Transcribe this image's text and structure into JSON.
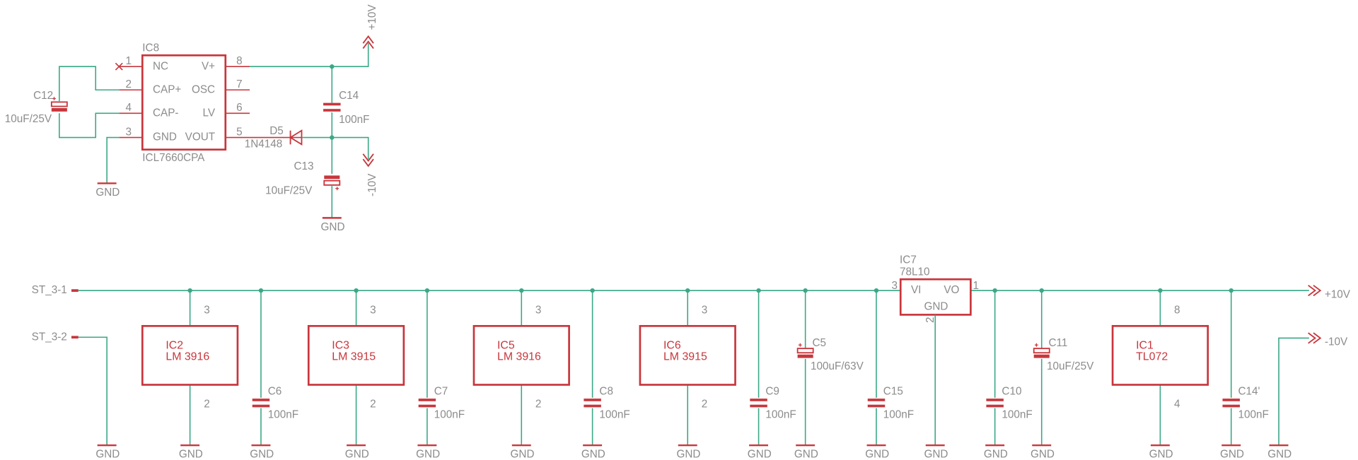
{
  "ground": "GND",
  "top": {
    "ic8": {
      "ref": "IC8",
      "value": "ICL7660CPA",
      "pins": [
        {
          "num": "1",
          "name": "NC"
        },
        {
          "num": "2",
          "name": "CAP+"
        },
        {
          "num": "4",
          "name": "CAP-"
        },
        {
          "num": "3",
          "name": "GND"
        },
        {
          "num": "8",
          "name": "V+"
        },
        {
          "num": "7",
          "name": "OSC"
        },
        {
          "num": "6",
          "name": "LV"
        },
        {
          "num": "5",
          "name": "VOUT"
        }
      ]
    },
    "caps": [
      {
        "ref": "C12",
        "value": "10uF/25V"
      },
      {
        "ref": "C14",
        "value": "100nF"
      },
      {
        "ref": "C13",
        "value": "10uF/25V"
      }
    ],
    "diode": {
      "ref": "D5",
      "value": "1N4148"
    },
    "rails": [
      "+10V",
      "-10V"
    ]
  },
  "bottom": {
    "connectors": [
      "ST_3-1",
      "ST_3-2"
    ],
    "ics": [
      {
        "ref": "IC2",
        "value": "LM 3916",
        "pin_top": "3",
        "pin_bottom": "2"
      },
      {
        "ref": "IC3",
        "value": "LM 3915",
        "pin_top": "3",
        "pin_bottom": "2"
      },
      {
        "ref": "IC5",
        "value": "LM 3916",
        "pin_top": "3",
        "pin_bottom": "2"
      },
      {
        "ref": "IC6",
        "value": "LM 3915",
        "pin_top": "3",
        "pin_bottom": "2"
      },
      {
        "ref": "IC1",
        "value": "TL072",
        "pin_top": "8",
        "pin_bottom": "4"
      }
    ],
    "caps": [
      {
        "ref": "C6",
        "value": "100nF"
      },
      {
        "ref": "C7",
        "value": "100nF"
      },
      {
        "ref": "C8",
        "value": "100nF"
      },
      {
        "ref": "C9",
        "value": "100nF"
      },
      {
        "ref": "C5",
        "value": "100uF/63V"
      },
      {
        "ref": "C15",
        "value": "100nF"
      },
      {
        "ref": "C10",
        "value": "100nF"
      },
      {
        "ref": "C11",
        "value": "10uF/25V"
      },
      {
        "ref": "C14'",
        "value": "100nF"
      }
    ],
    "regulator": {
      "ref": "IC7",
      "value": "78L10",
      "pins": [
        {
          "num": "3",
          "name": "VI"
        },
        {
          "num": "1",
          "name": "VO"
        },
        {
          "num": "2",
          "name": "GND"
        }
      ]
    },
    "rails": [
      "+10V",
      "-10V"
    ]
  }
}
